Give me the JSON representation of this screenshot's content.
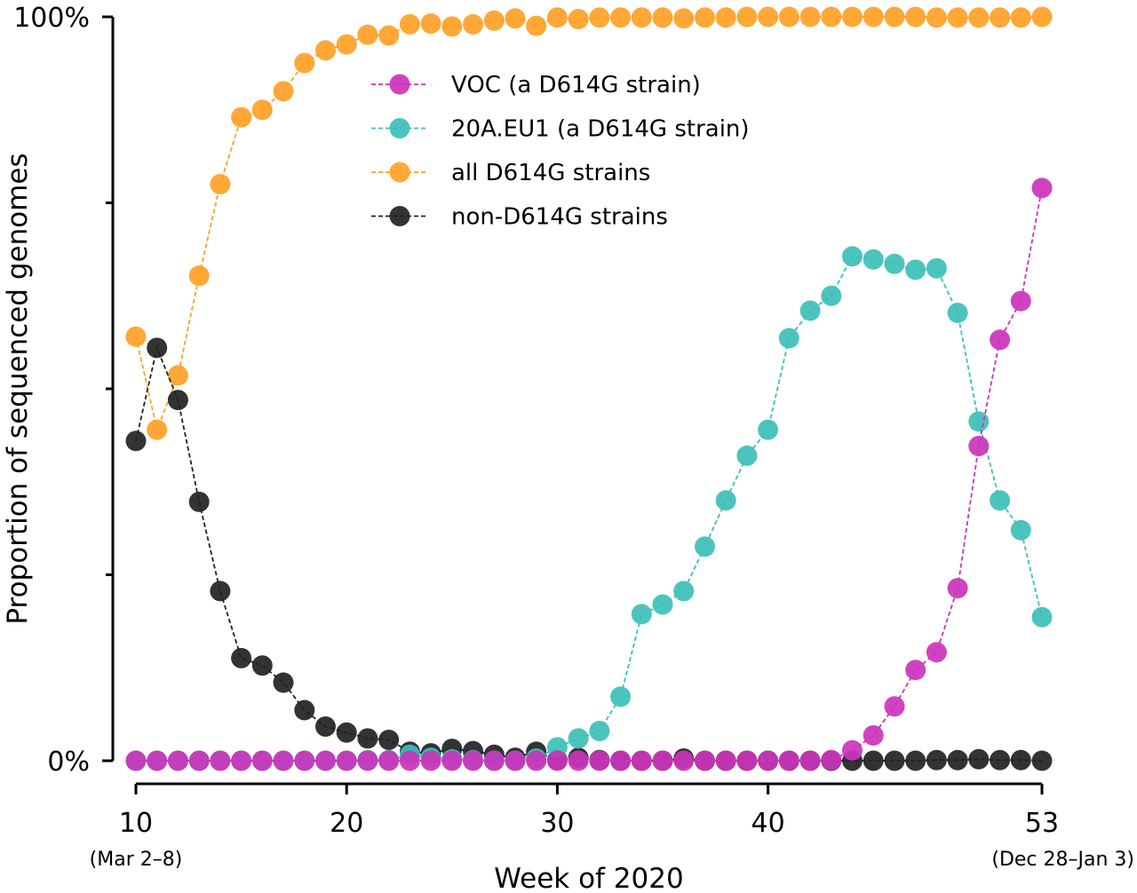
{
  "chart_data": {
    "type": "line",
    "xlabel": "Week of 2020",
    "ylabel": "Proportion of sequenced genomes",
    "xlim": [
      10,
      53
    ],
    "ylim": [
      0,
      1
    ],
    "x_ticks": [
      {
        "value": 10,
        "label": "10",
        "sublabel": "(Mar 2–8)"
      },
      {
        "value": 20,
        "label": "20",
        "sublabel": ""
      },
      {
        "value": 30,
        "label": "30",
        "sublabel": ""
      },
      {
        "value": 40,
        "label": "40",
        "sublabel": ""
      },
      {
        "value": 53,
        "label": "53",
        "sublabel": "(Dec 28–Jan 3)"
      }
    ],
    "y_ticks": [
      {
        "value": 0,
        "label": "0%"
      },
      {
        "value": 0.25,
        "label": ""
      },
      {
        "value": 0.5,
        "label": ""
      },
      {
        "value": 0.75,
        "label": ""
      },
      {
        "value": 1,
        "label": "100%"
      }
    ],
    "legend_position": "upper-center",
    "x": [
      10,
      11,
      12,
      13,
      14,
      15,
      16,
      17,
      18,
      19,
      20,
      21,
      22,
      23,
      24,
      25,
      26,
      27,
      28,
      29,
      30,
      31,
      32,
      33,
      34,
      35,
      36,
      37,
      38,
      39,
      40,
      41,
      42,
      43,
      44,
      45,
      46,
      47,
      48,
      49,
      50,
      51,
      52,
      53
    ],
    "series": [
      {
        "name": "all D614G strains",
        "color": "#FFA126",
        "values": [
          0.57,
          0.445,
          0.518,
          0.652,
          0.775,
          0.865,
          0.875,
          0.9,
          0.938,
          0.955,
          0.963,
          0.976,
          0.975,
          0.99,
          0.991,
          0.987,
          0.99,
          0.995,
          0.998,
          0.988,
          0.999,
          0.997,
          0.999,
          0.999,
          0.999,
          0.999,
          0.998,
          0.999,
          0.999,
          1.0,
          1.0,
          1.0,
          1.0,
          1.0,
          1.0,
          1.0,
          1.0,
          1.0,
          0.999,
          0.999,
          0.999,
          0.999,
          0.999,
          1.0
        ]
      },
      {
        "name": "non-D614G strains",
        "color": "#222222",
        "values": [
          0.43,
          0.555,
          0.485,
          0.348,
          0.228,
          0.138,
          0.128,
          0.105,
          0.068,
          0.046,
          0.038,
          0.03,
          0.028,
          0.012,
          0.01,
          0.016,
          0.013,
          0.008,
          0.004,
          0.012,
          0.001,
          0.004,
          0.001,
          0.0,
          0.0,
          0.0,
          0.003,
          0.0,
          0.0,
          0.0,
          0.0,
          0.0,
          0.0,
          0.0,
          0.0,
          0.0,
          0.0,
          0.0,
          0.001,
          0.001,
          0.002,
          0.001,
          0.001,
          0.0
        ]
      },
      {
        "name": "20A.EU1 (a D614G strain)",
        "color": "#3DBFB8",
        "values": [
          0.0,
          0.0,
          0.0,
          0.0,
          0.0,
          0.0,
          0.0,
          0.0,
          0.0,
          0.0,
          0.0,
          0.001,
          0.001,
          0.008,
          0.004,
          0.002,
          0.001,
          0.0,
          0.0,
          0.003,
          0.018,
          0.03,
          0.04,
          0.086,
          0.197,
          0.21,
          0.228,
          0.288,
          0.35,
          0.41,
          0.445,
          0.568,
          0.605,
          0.625,
          0.678,
          0.674,
          0.668,
          0.66,
          0.662,
          0.602,
          0.456,
          0.35,
          0.31,
          0.193
        ]
      },
      {
        "name": "VOC (a D614G strain)",
        "color": "#CC33BB",
        "values": [
          0.0,
          0.0,
          0.0,
          0.0,
          0.0,
          0.0,
          0.0,
          0.0,
          0.0,
          0.0,
          0.0,
          0.0,
          0.0,
          0.0,
          0.0,
          0.0,
          0.0,
          0.0,
          0.0,
          0.0,
          0.0,
          0.0,
          0.0,
          0.0,
          0.0,
          0.0,
          0.0,
          0.0,
          0.0,
          0.0,
          0.0,
          0.0,
          0.0,
          0.001,
          0.014,
          0.034,
          0.073,
          0.122,
          0.146,
          0.232,
          0.423,
          0.566,
          0.618,
          0.77
        ]
      }
    ],
    "legend": [
      {
        "name": "VOC (a D614G strain)",
        "color": "#CC33BB"
      },
      {
        "name": "20A.EU1 (a D614G strain)",
        "color": "#3DBFB8"
      },
      {
        "name": "all D614G strains",
        "color": "#FFA126"
      },
      {
        "name": "non-D614G strains",
        "color": "#222222"
      }
    ]
  }
}
